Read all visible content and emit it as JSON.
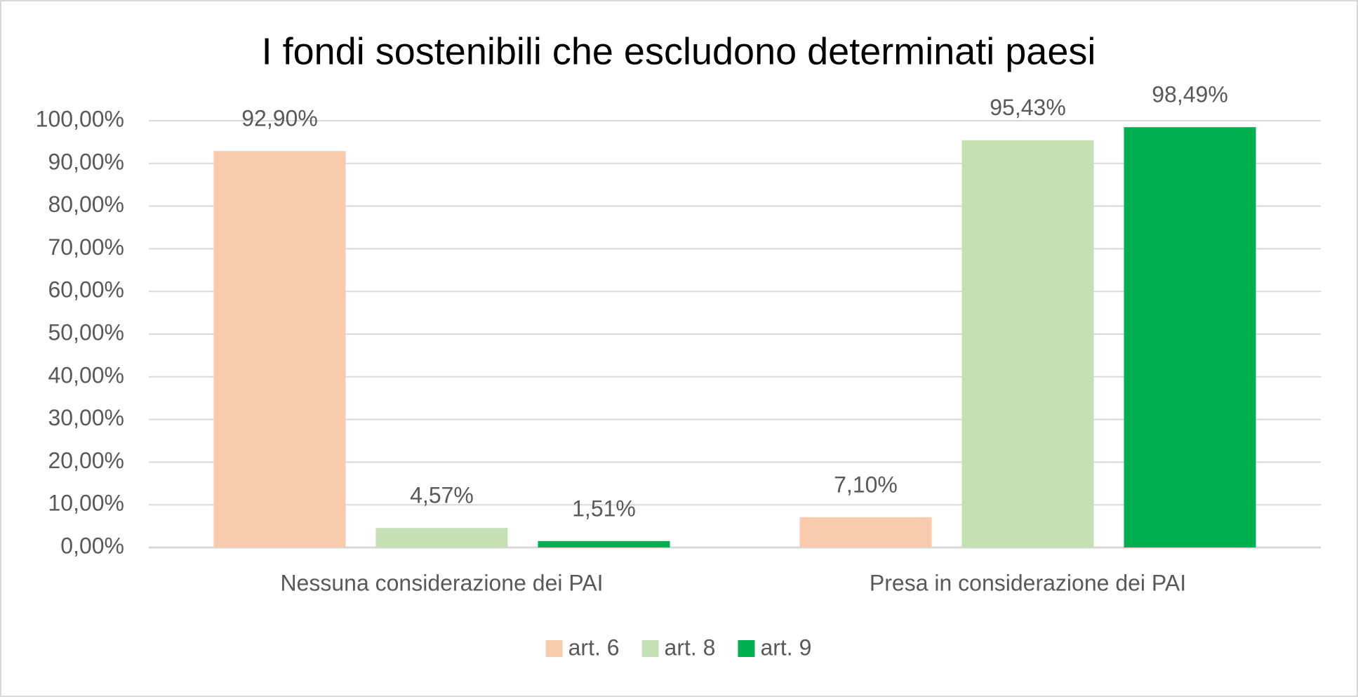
{
  "chart_data": {
    "type": "bar",
    "title": "I fondi sostenibili che escludono determinati paesi",
    "categories": [
      "Nessuna considerazione dei PAI",
      "Presa in considerazione dei PAI"
    ],
    "series": [
      {
        "name": "art. 6",
        "color": "#f8cbad",
        "values": [
          92.9,
          7.1
        ],
        "value_labels": [
          "92,90%",
          "7,10%"
        ]
      },
      {
        "name": "art. 8",
        "color": "#c5e0b4",
        "values": [
          4.57,
          95.43
        ],
        "value_labels": [
          "4,57%",
          "95,43%"
        ]
      },
      {
        "name": "art. 9",
        "color": "#00b050",
        "values": [
          1.51,
          98.49
        ],
        "value_labels": [
          "1,51%",
          "98,49%"
        ]
      }
    ],
    "ylim": [
      0,
      100
    ],
    "yticks": [
      {
        "value": 0,
        "label": "0,00%"
      },
      {
        "value": 10,
        "label": "10,00%"
      },
      {
        "value": 20,
        "label": "20,00%"
      },
      {
        "value": 30,
        "label": "30,00%"
      },
      {
        "value": 40,
        "label": "40,00%"
      },
      {
        "value": 50,
        "label": "50,00%"
      },
      {
        "value": 60,
        "label": "60,00%"
      },
      {
        "value": 70,
        "label": "70,00%"
      },
      {
        "value": 80,
        "label": "80,00%"
      },
      {
        "value": 90,
        "label": "90,00%"
      },
      {
        "value": 100,
        "label": "100,00%"
      }
    ],
    "grid": true,
    "legend": "bottom"
  }
}
